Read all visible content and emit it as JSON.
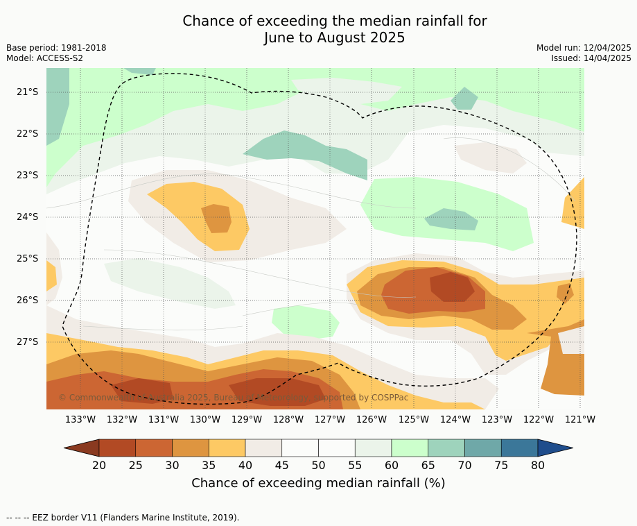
{
  "header": {
    "title_line1": "Chance of exceeding the median rainfall for",
    "title_line2": "June to August 2025",
    "base_period": "Base period: 1981-2018",
    "model": "Model: ACCESS-S2",
    "model_run": "Model run: 12/04/2025",
    "issued": "Issued: 14/04/2025"
  },
  "map": {
    "copyright": "© Commonwealth of Australia 2025, Bureau of Meteorology, supported by COSPPac",
    "lat_labels": [
      "21°S",
      "22°S",
      "23°S",
      "24°S",
      "25°S",
      "26°S",
      "27°S"
    ],
    "lon_labels": [
      "133°W",
      "132°W",
      "131°W",
      "130°W",
      "129°W",
      "128°W",
      "127°W",
      "126°W",
      "125°W",
      "124°W",
      "123°W",
      "122°W",
      "121°W"
    ]
  },
  "colorbar": {
    "ticks": [
      "20",
      "25",
      "30",
      "35",
      "40",
      "45",
      "50",
      "55",
      "60",
      "65",
      "70",
      "75",
      "80"
    ],
    "title": "Chance of exceeding median rainfall (%)",
    "colors": [
      "#8a3a20",
      "#b24a24",
      "#cc6633",
      "#de9540",
      "#fdc964",
      "#f1ece6",
      "#fbfcfa",
      "#fbfcfa",
      "#ebf4ea",
      "#ccffcc",
      "#9ed3bc",
      "#6fa8a8",
      "#3b7799",
      "#1f4d8c"
    ]
  },
  "footer": {
    "legend": "--  --  -- EEZ border V11 (Flanders Marine Institute, 2019)."
  }
}
